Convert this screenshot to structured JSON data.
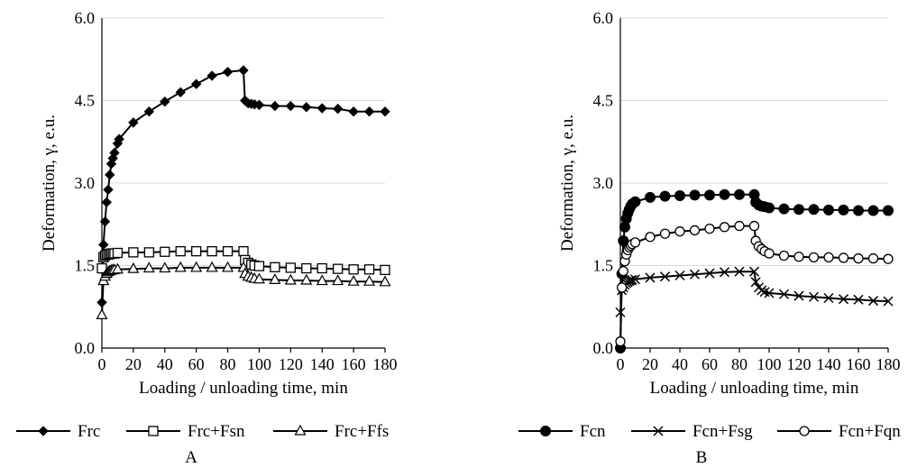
{
  "chart_data": [
    {
      "type": "line",
      "panel_label": "A",
      "xlabel": "Loading / unloading time, min",
      "ylabel": "Deformation, γ, e.u.",
      "xlim": [
        0,
        180
      ],
      "ylim": [
        0,
        6
      ],
      "x_ticks": [
        "0",
        "20",
        "40",
        "60",
        "80",
        "100",
        "120",
        "140",
        "160",
        "180"
      ],
      "y_ticks": [
        "0.0",
        "1.5",
        "3.0",
        "4.5",
        "6.0"
      ],
      "grid": "horizontal",
      "legend_position": "bottom",
      "series": [
        {
          "name": "Frc",
          "marker": "diamond",
          "points": [
            [
              0,
              0.83
            ],
            [
              1,
              1.88
            ],
            [
              2,
              2.3
            ],
            [
              3,
              2.65
            ],
            [
              4,
              2.88
            ],
            [
              5,
              3.15
            ],
            [
              6,
              3.35
            ],
            [
              7,
              3.45
            ],
            [
              8,
              3.55
            ],
            [
              10,
              3.72
            ],
            [
              11,
              3.8
            ],
            [
              20,
              4.1
            ],
            [
              30,
              4.3
            ],
            [
              40,
              4.48
            ],
            [
              50,
              4.65
            ],
            [
              60,
              4.8
            ],
            [
              70,
              4.95
            ],
            [
              80,
              5.02
            ],
            [
              90,
              5.05
            ],
            [
              91,
              4.5
            ],
            [
              93,
              4.45
            ],
            [
              95,
              4.44
            ],
            [
              97,
              4.43
            ],
            [
              100,
              4.42
            ],
            [
              110,
              4.4
            ],
            [
              120,
              4.4
            ],
            [
              130,
              4.38
            ],
            [
              140,
              4.36
            ],
            [
              150,
              4.35
            ],
            [
              160,
              4.3
            ],
            [
              170,
              4.3
            ],
            [
              180,
              4.3
            ]
          ]
        },
        {
          "name": "Frc+Fsn",
          "marker": "square",
          "points": [
            [
              0,
              1.45
            ],
            [
              1,
              1.65
            ],
            [
              2,
              1.68
            ],
            [
              3,
              1.7
            ],
            [
              4,
              1.7
            ],
            [
              5,
              1.71
            ],
            [
              6,
              1.72
            ],
            [
              7,
              1.72
            ],
            [
              8,
              1.72
            ],
            [
              10,
              1.73
            ],
            [
              20,
              1.74
            ],
            [
              30,
              1.74
            ],
            [
              40,
              1.75
            ],
            [
              50,
              1.76
            ],
            [
              60,
              1.76
            ],
            [
              70,
              1.76
            ],
            [
              80,
              1.76
            ],
            [
              90,
              1.76
            ],
            [
              91,
              1.6
            ],
            [
              93,
              1.55
            ],
            [
              95,
              1.52
            ],
            [
              97,
              1.5
            ],
            [
              100,
              1.49
            ],
            [
              110,
              1.47
            ],
            [
              120,
              1.46
            ],
            [
              130,
              1.45
            ],
            [
              140,
              1.45
            ],
            [
              150,
              1.44
            ],
            [
              160,
              1.43
            ],
            [
              170,
              1.43
            ],
            [
              180,
              1.42
            ]
          ]
        },
        {
          "name": "Frc+Ffs",
          "marker": "triangle",
          "points": [
            [
              0,
              0.6
            ],
            [
              1,
              1.22
            ],
            [
              2,
              1.3
            ],
            [
              3,
              1.35
            ],
            [
              4,
              1.38
            ],
            [
              5,
              1.4
            ],
            [
              6,
              1.41
            ],
            [
              7,
              1.42
            ],
            [
              8,
              1.42
            ],
            [
              10,
              1.43
            ],
            [
              20,
              1.44
            ],
            [
              30,
              1.45
            ],
            [
              40,
              1.45
            ],
            [
              50,
              1.46
            ],
            [
              60,
              1.46
            ],
            [
              70,
              1.46
            ],
            [
              80,
              1.46
            ],
            [
              90,
              1.46
            ],
            [
              91,
              1.35
            ],
            [
              93,
              1.3
            ],
            [
              95,
              1.28
            ],
            [
              97,
              1.26
            ],
            [
              100,
              1.25
            ],
            [
              110,
              1.24
            ],
            [
              120,
              1.23
            ],
            [
              130,
              1.23
            ],
            [
              140,
              1.22
            ],
            [
              150,
              1.22
            ],
            [
              160,
              1.21
            ],
            [
              170,
              1.21
            ],
            [
              180,
              1.2
            ]
          ]
        }
      ]
    },
    {
      "type": "line",
      "panel_label": "B",
      "xlabel": "Loading / unloading time, min",
      "ylabel": "Deformation, γ, e.u.",
      "xlim": [
        0,
        180
      ],
      "ylim": [
        0,
        6
      ],
      "x_ticks": [
        "0",
        "20",
        "40",
        "60",
        "80",
        "100",
        "120",
        "140",
        "160",
        "180"
      ],
      "y_ticks": [
        "0.0",
        "1.5",
        "3.0",
        "4.5",
        "6.0"
      ],
      "grid": "horizontal",
      "legend_position": "bottom",
      "series": [
        {
          "name": "Fcn",
          "marker": "filled-circle",
          "points": [
            [
              0,
              0.0
            ],
            [
              1,
              1.35
            ],
            [
              2,
              1.95
            ],
            [
              3,
              2.2
            ],
            [
              4,
              2.35
            ],
            [
              5,
              2.45
            ],
            [
              6,
              2.52
            ],
            [
              7,
              2.58
            ],
            [
              8,
              2.62
            ],
            [
              10,
              2.66
            ],
            [
              20,
              2.74
            ],
            [
              30,
              2.76
            ],
            [
              40,
              2.77
            ],
            [
              50,
              2.78
            ],
            [
              60,
              2.78
            ],
            [
              70,
              2.79
            ],
            [
              80,
              2.79
            ],
            [
              90,
              2.79
            ],
            [
              91,
              2.65
            ],
            [
              93,
              2.6
            ],
            [
              95,
              2.58
            ],
            [
              97,
              2.57
            ],
            [
              100,
              2.55
            ],
            [
              110,
              2.53
            ],
            [
              120,
              2.52
            ],
            [
              130,
              2.52
            ],
            [
              140,
              2.51
            ],
            [
              150,
              2.51
            ],
            [
              160,
              2.5
            ],
            [
              170,
              2.5
            ],
            [
              180,
              2.5
            ]
          ]
        },
        {
          "name": "Fcn+Fsg",
          "marker": "x",
          "points": [
            [
              0,
              0.65
            ],
            [
              1,
              1.05
            ],
            [
              2,
              1.1
            ],
            [
              3,
              1.15
            ],
            [
              4,
              1.18
            ],
            [
              5,
              1.2
            ],
            [
              6,
              1.22
            ],
            [
              7,
              1.23
            ],
            [
              8,
              1.24
            ],
            [
              10,
              1.25
            ],
            [
              20,
              1.28
            ],
            [
              30,
              1.3
            ],
            [
              40,
              1.32
            ],
            [
              50,
              1.34
            ],
            [
              60,
              1.36
            ],
            [
              70,
              1.38
            ],
            [
              80,
              1.39
            ],
            [
              90,
              1.39
            ],
            [
              91,
              1.2
            ],
            [
              93,
              1.1
            ],
            [
              95,
              1.05
            ],
            [
              97,
              1.02
            ],
            [
              100,
              1.0
            ],
            [
              110,
              0.98
            ],
            [
              120,
              0.95
            ],
            [
              130,
              0.93
            ],
            [
              140,
              0.91
            ],
            [
              150,
              0.89
            ],
            [
              160,
              0.88
            ],
            [
              170,
              0.86
            ],
            [
              180,
              0.85
            ]
          ]
        },
        {
          "name": "Fcn+Fqn",
          "marker": "open-circle",
          "points": [
            [
              0,
              0.12
            ],
            [
              1,
              1.1
            ],
            [
              2,
              1.4
            ],
            [
              3,
              1.58
            ],
            [
              4,
              1.7
            ],
            [
              5,
              1.78
            ],
            [
              6,
              1.83
            ],
            [
              7,
              1.86
            ],
            [
              8,
              1.89
            ],
            [
              10,
              1.92
            ],
            [
              20,
              2.02
            ],
            [
              30,
              2.08
            ],
            [
              40,
              2.12
            ],
            [
              50,
              2.14
            ],
            [
              60,
              2.17
            ],
            [
              70,
              2.2
            ],
            [
              80,
              2.22
            ],
            [
              90,
              2.22
            ],
            [
              91,
              1.95
            ],
            [
              93,
              1.85
            ],
            [
              95,
              1.8
            ],
            [
              97,
              1.76
            ],
            [
              100,
              1.72
            ],
            [
              110,
              1.68
            ],
            [
              120,
              1.66
            ],
            [
              130,
              1.65
            ],
            [
              140,
              1.65
            ],
            [
              150,
              1.64
            ],
            [
              160,
              1.63
            ],
            [
              170,
              1.63
            ],
            [
              180,
              1.62
            ]
          ]
        }
      ]
    }
  ]
}
